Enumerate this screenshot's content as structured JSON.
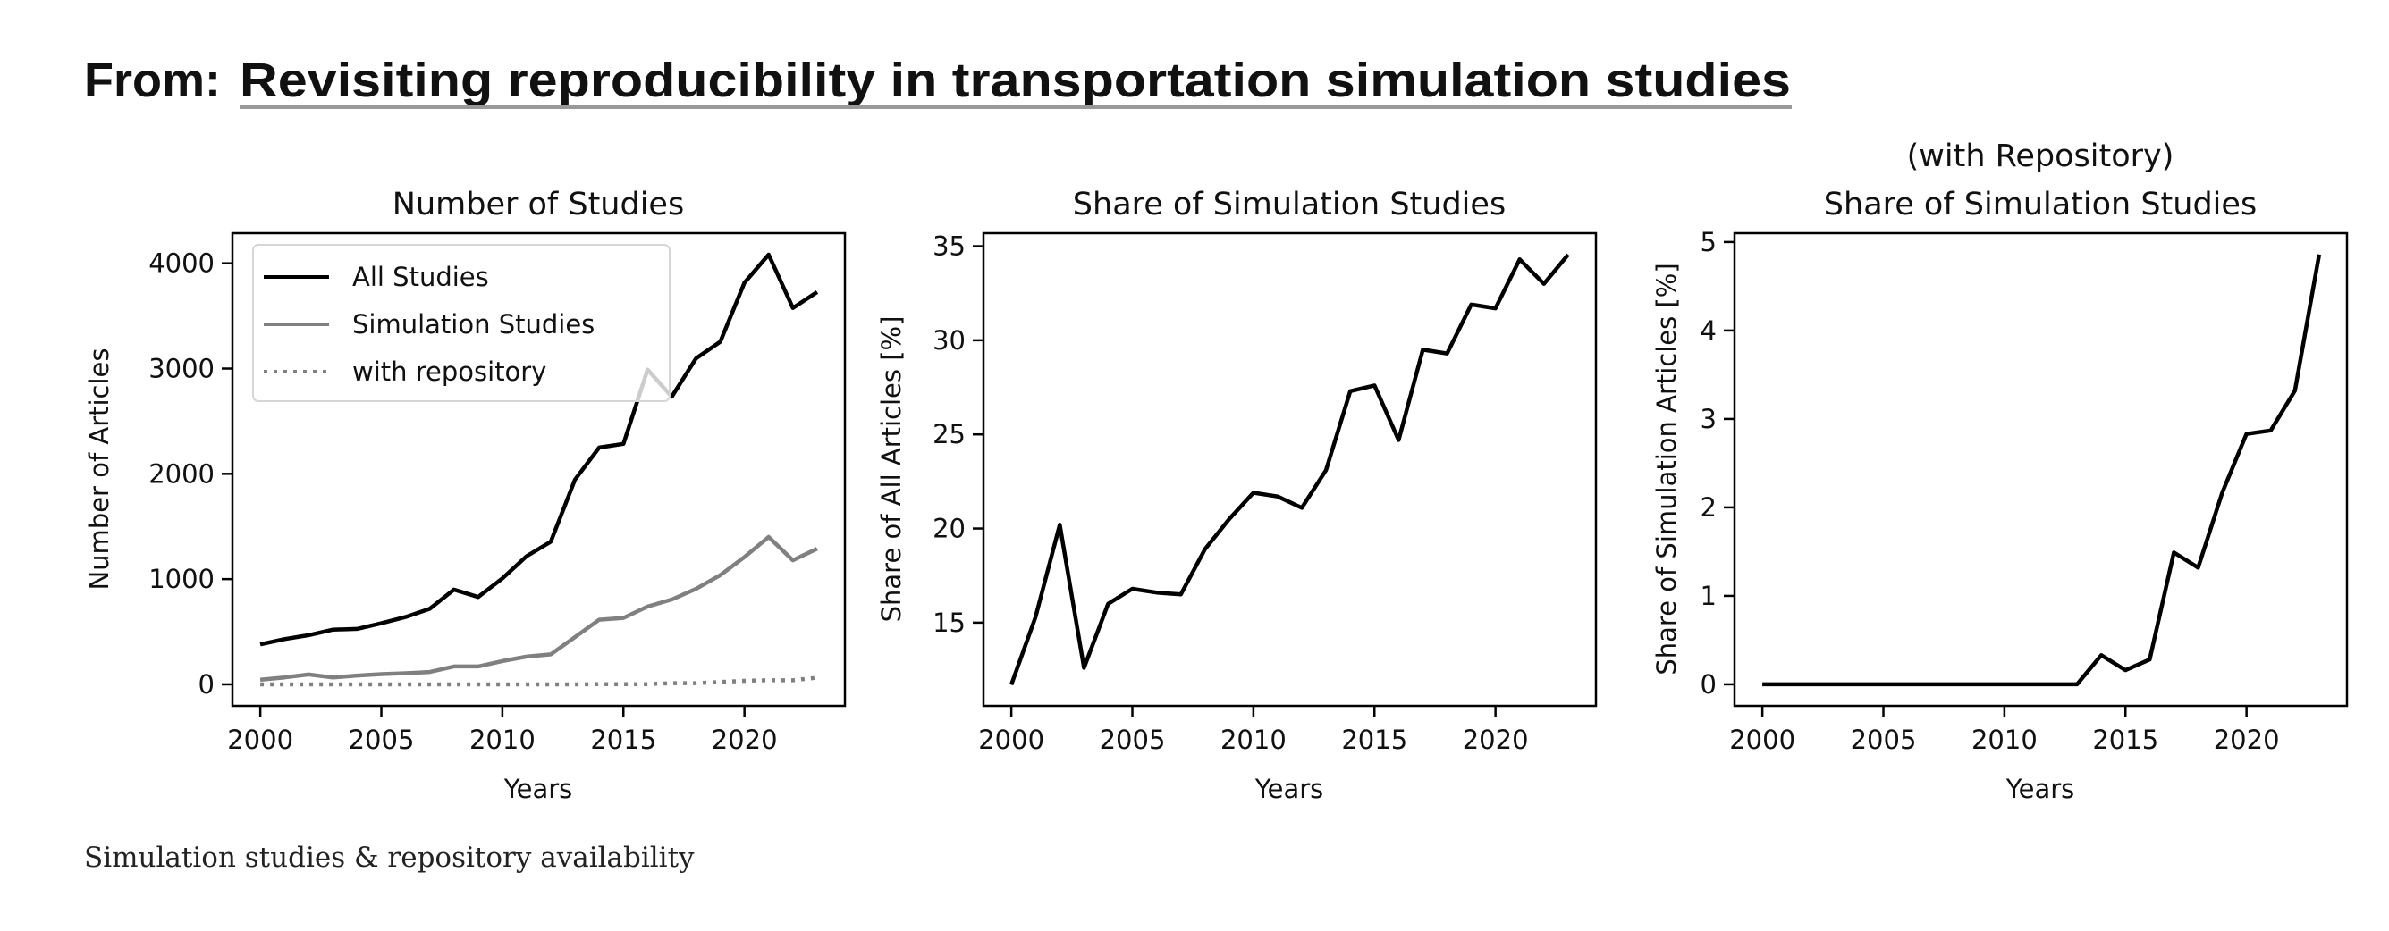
{
  "header": {
    "prefix": "From: ",
    "article_title": "Revisiting reproducibility in transportation simulation studies"
  },
  "caption": "Simulation studies & repository availability",
  "chart_data": [
    {
      "type": "line",
      "title": "Number of Studies",
      "xlabel": "Years",
      "ylabel": "Number of Articles",
      "x": [
        2000,
        2001,
        2002,
        2003,
        2004,
        2005,
        2006,
        2007,
        2008,
        2009,
        2010,
        2011,
        2012,
        2013,
        2014,
        2015,
        2016,
        2017,
        2018,
        2019,
        2020,
        2021,
        2022,
        2023
      ],
      "xlim": [
        1998.85,
        2024.15
      ],
      "ylim": [
        -204,
        4286
      ],
      "xticks": [
        2000,
        2005,
        2010,
        2015,
        2020
      ],
      "yticks": [
        0,
        1000,
        2000,
        3000,
        4000
      ],
      "grid": false,
      "legend": "upper-left",
      "series": [
        {
          "name": "All Studies",
          "color": "#000000",
          "style": "solid",
          "values": [
            380,
            430,
            467,
            520,
            527,
            580,
            640,
            718,
            900,
            830,
            1006,
            1218,
            1355,
            1945,
            2250,
            2285,
            2990,
            2733,
            3097,
            3255,
            3815,
            4082,
            3576,
            3727
          ]
        },
        {
          "name": "Simulation Studies",
          "color": "#808080",
          "style": "solid",
          "values": [
            44,
            66,
            94,
            65,
            84,
            97,
            106,
            118,
            170,
            170,
            221,
            264,
            285,
            449,
            614,
            631,
            739,
            806,
            907,
            1038,
            1209,
            1400,
            1179,
            1288
          ]
        },
        {
          "name": "with repository",
          "color": "#808080",
          "style": "dotted",
          "values": [
            0,
            0,
            0,
            0,
            0,
            0,
            0,
            0,
            0,
            0,
            0,
            0,
            0,
            0,
            2,
            1,
            2,
            12,
            12,
            23,
            34,
            40,
            39,
            63
          ]
        }
      ]
    },
    {
      "type": "line",
      "title": "Share of Simulation Studies",
      "xlabel": "Years",
      "ylabel": "Share of All Articles [%]",
      "x": [
        2000,
        2001,
        2002,
        2003,
        2004,
        2005,
        2006,
        2007,
        2008,
        2009,
        2010,
        2011,
        2012,
        2013,
        2014,
        2015,
        2016,
        2017,
        2018,
        2019,
        2020,
        2021,
        2022,
        2023
      ],
      "xlim": [
        1998.85,
        2024.15
      ],
      "ylim": [
        10.58,
        35.69
      ],
      "xticks": [
        2000,
        2005,
        2010,
        2015,
        2020
      ],
      "yticks": [
        15,
        20,
        25,
        30,
        35
      ],
      "grid": false,
      "series": [
        {
          "color": "#000000",
          "style": "solid",
          "values": [
            11.7,
            15.3,
            20.2,
            12.6,
            16.0,
            16.8,
            16.6,
            16.5,
            18.9,
            20.5,
            21.9,
            21.7,
            21.1,
            23.1,
            27.3,
            27.6,
            24.7,
            29.5,
            29.3,
            31.9,
            31.7,
            34.3,
            33.0,
            34.55
          ]
        }
      ]
    },
    {
      "type": "line",
      "title": "Share of Simulation Studies",
      "title_line1": "(with Repository)",
      "xlabel": "Years",
      "ylabel": "Share of Simulation Articles [%]",
      "x": [
        2000,
        2001,
        2002,
        2003,
        2004,
        2005,
        2006,
        2007,
        2008,
        2009,
        2010,
        2011,
        2012,
        2013,
        2014,
        2015,
        2016,
        2017,
        2018,
        2019,
        2020,
        2021,
        2022,
        2023
      ],
      "xlim": [
        1998.85,
        2024.15
      ],
      "ylim": [
        -0.243,
        5.1
      ],
      "xticks": [
        2000,
        2005,
        2010,
        2015,
        2020
      ],
      "yticks": [
        0,
        1,
        2,
        3,
        4,
        5
      ],
      "grid": false,
      "series": [
        {
          "color": "#000000",
          "style": "solid",
          "values": [
            0,
            0,
            0,
            0,
            0,
            0,
            0,
            0,
            0,
            0,
            0,
            0,
            0,
            0,
            0.33,
            0.16,
            0.28,
            1.49,
            1.32,
            2.17,
            2.83,
            2.87,
            3.32,
            4.86
          ]
        }
      ]
    }
  ]
}
